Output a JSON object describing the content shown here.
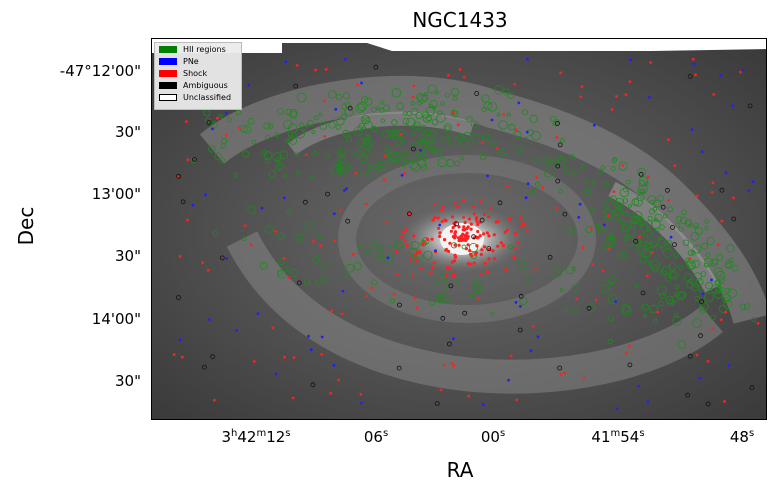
{
  "title": "NGC1433",
  "axes": {
    "xlabel": "RA",
    "ylabel": "Dec",
    "yticks": [
      "-47°12'00\"",
      "30\"",
      "13'00\"",
      "30\"",
      "14'00\"",
      "30\""
    ],
    "xticks": [
      {
        "main": "3",
        "sup1": "h",
        "mid": "42",
        "sup2": "m",
        "end": "12",
        "sup3": "s"
      },
      {
        "main": "06",
        "sup3": "s"
      },
      {
        "main": "00",
        "sup3": "s"
      },
      {
        "main": "41",
        "sup2": "m",
        "end": "54",
        "sup3": "s"
      },
      {
        "main": "48",
        "sup3": "s"
      }
    ]
  },
  "legend": {
    "items": [
      {
        "label": "HII regions",
        "color": "#008000"
      },
      {
        "label": "PNe",
        "color": "#0000ff"
      },
      {
        "label": "Shock",
        "color": "#ff0000"
      },
      {
        "label": "Ambiguous",
        "color": "#000000"
      },
      {
        "label": "Unclassified",
        "color": "#ffffff"
      }
    ]
  }
}
